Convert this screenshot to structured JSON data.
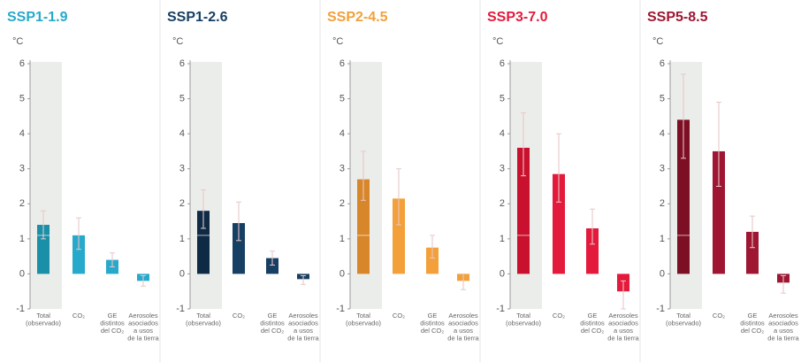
{
  "chart_data": [
    {
      "type": "bar",
      "title": "SSP1-1.9",
      "unit": "°C",
      "color": "#27a9cb",
      "total_color": "#1a8fa8",
      "observed": 1.1,
      "categories": [
        "Total\n(observado)",
        "CO₂",
        "GE\ndistintos\ndel CO₂",
        "Aerosoles\nasociados\na usos\nde la tierra"
      ],
      "values": [
        1.4,
        1.1,
        0.4,
        -0.2
      ],
      "lower": [
        1.0,
        0.7,
        0.2,
        -0.35
      ],
      "upper": [
        1.8,
        1.6,
        0.6,
        -0.05
      ],
      "ylim": [
        -1,
        6
      ],
      "yticks": [
        -1,
        0,
        1,
        2,
        3,
        4,
        5,
        6
      ]
    },
    {
      "type": "bar",
      "title": "SSP1-2.6",
      "unit": "°C",
      "color": "#173f63",
      "total_color": "#0f2a45",
      "observed": 1.1,
      "categories": [
        "Total\n(observado)",
        "CO₂",
        "GE\ndistintos\ndel CO₂",
        "Aerosoles\nasociados\na usos\nde la tierra"
      ],
      "values": [
        1.8,
        1.45,
        0.45,
        -0.15
      ],
      "lower": [
        1.3,
        0.95,
        0.25,
        -0.3
      ],
      "upper": [
        2.4,
        2.05,
        0.65,
        -0.05
      ],
      "ylim": [
        -1,
        6
      ],
      "yticks": [
        -1,
        0,
        1,
        2,
        3,
        4,
        5,
        6
      ]
    },
    {
      "type": "bar",
      "title": "SSP2-4.5",
      "unit": "°C",
      "color": "#f3a03a",
      "total_color": "#d8862a",
      "observed": 1.1,
      "categories": [
        "Total\n(observado)",
        "CO₂",
        "GE\ndistintos\ndel CO₂",
        "Aerosoles\nasociados\na usos\nde la tierra"
      ],
      "values": [
        2.7,
        2.15,
        0.75,
        -0.2
      ],
      "lower": [
        2.1,
        1.4,
        0.45,
        -0.45
      ],
      "upper": [
        3.5,
        3.0,
        1.1,
        0.0
      ],
      "ylim": [
        -1,
        6
      ],
      "yticks": [
        -1,
        0,
        1,
        2,
        3,
        4,
        5,
        6
      ]
    },
    {
      "type": "bar",
      "title": "SSP3-7.0",
      "unit": "°C",
      "color": "#e31a3c",
      "total_color": "#c9112f",
      "observed": 1.1,
      "categories": [
        "Total\n(observado)",
        "CO₂",
        "GE\ndistintos\ndel CO₂",
        "Aerosoles\nasociados\na usos\nde la tierra"
      ],
      "values": [
        3.6,
        2.85,
        1.3,
        -0.5
      ],
      "lower": [
        2.8,
        2.05,
        0.85,
        -1.0
      ],
      "upper": [
        4.6,
        4.0,
        1.85,
        -0.2
      ],
      "ylim": [
        -1,
        6
      ],
      "yticks": [
        -1,
        0,
        1,
        2,
        3,
        4,
        5,
        6
      ]
    },
    {
      "type": "bar",
      "title": "SSP5-8.5",
      "unit": "°C",
      "color": "#9e1632",
      "total_color": "#7d0f25",
      "observed": 1.1,
      "categories": [
        "Total\n(observado)",
        "CO₂",
        "GE\ndistintos\ndel CO₂",
        "Aerosoles\nasociados\na usos\nde la tierra"
      ],
      "values": [
        4.4,
        3.5,
        1.2,
        -0.25
      ],
      "lower": [
        3.3,
        2.5,
        0.75,
        -0.55
      ],
      "upper": [
        5.7,
        4.9,
        1.65,
        -0.05
      ],
      "ylim": [
        -1,
        6
      ],
      "yticks": [
        -1,
        0,
        1,
        2,
        3,
        4,
        5,
        6
      ]
    }
  ]
}
